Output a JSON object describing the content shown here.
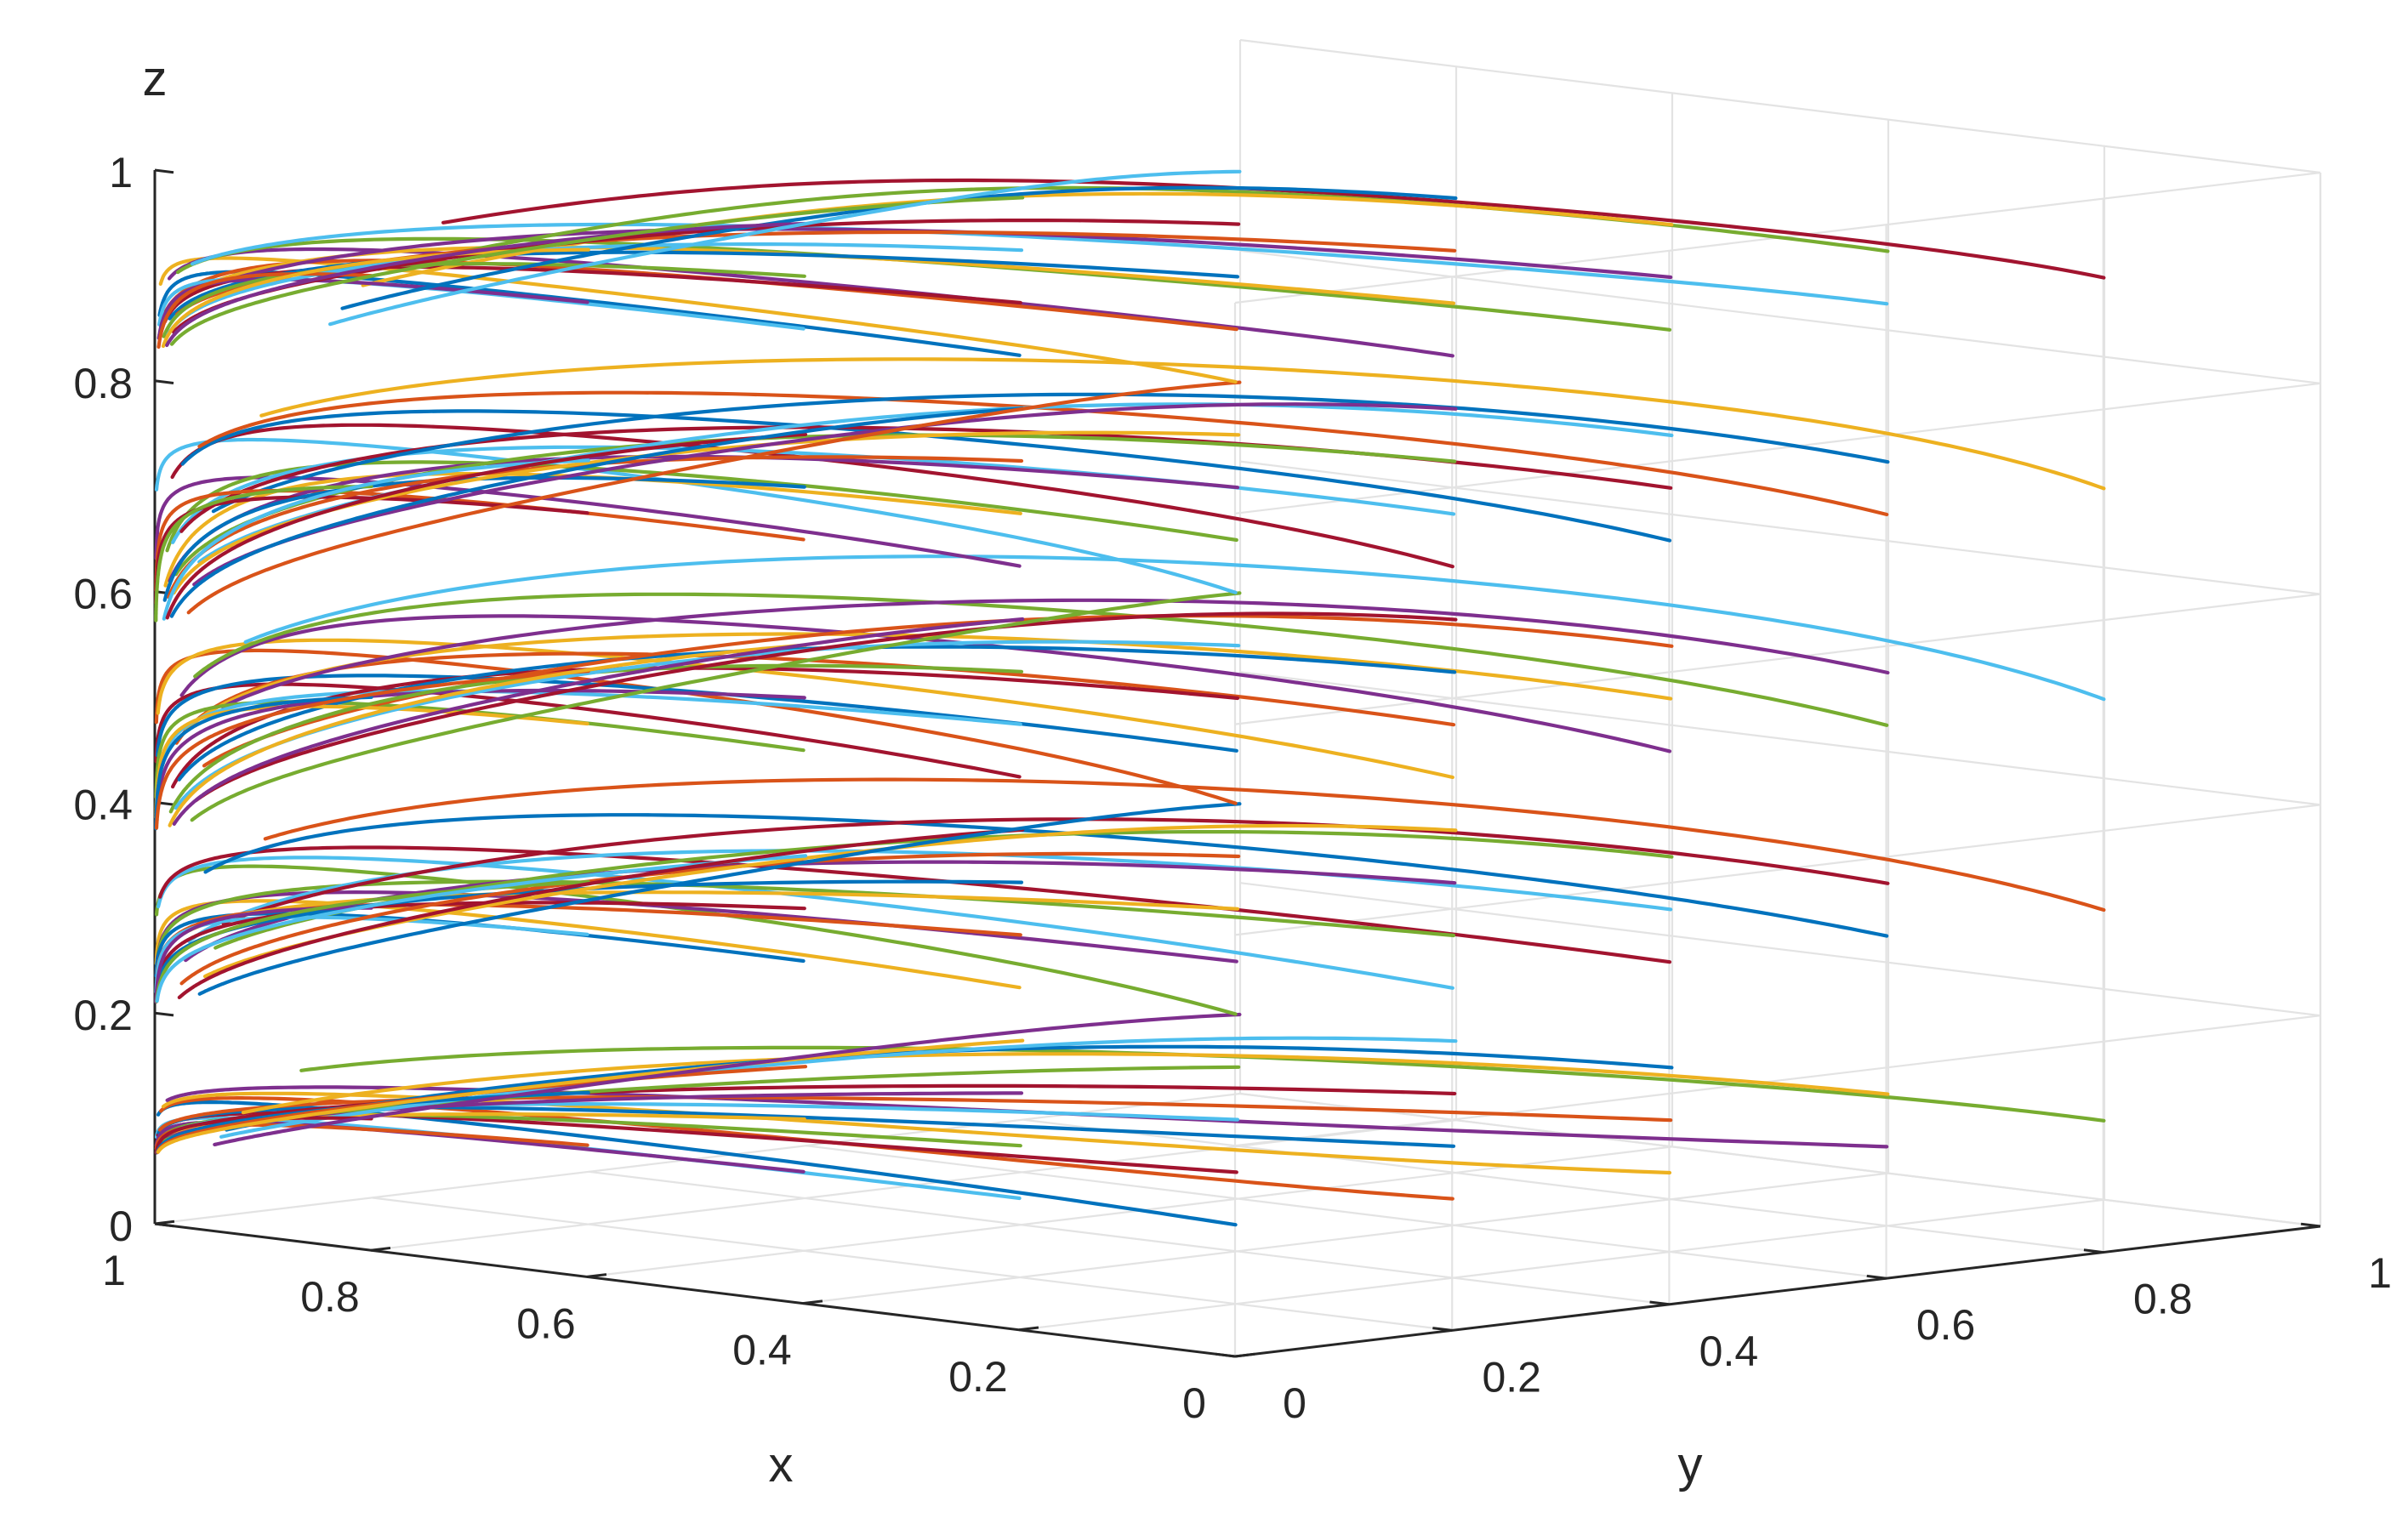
{
  "chart_data": {
    "type": "line",
    "projection": "3d",
    "xlabel": "x",
    "ylabel": "y",
    "zlabel": "z",
    "xlim": [
      0,
      1
    ],
    "ylim": [
      0,
      1
    ],
    "zlim": [
      0,
      1
    ],
    "x_ticks": [
      "0",
      "0.2",
      "0.4",
      "0.6",
      "0.8",
      "1"
    ],
    "y_ticks": [
      "0",
      "0.2",
      "0.4",
      "0.6",
      "0.8",
      "1"
    ],
    "z_ticks": [
      "0",
      "0.2",
      "0.4",
      "0.6",
      "0.8",
      "1"
    ],
    "grid": true,
    "series_colors": [
      "#0072BD",
      "#D95319",
      "#EDB120",
      "#7E2F8E",
      "#77AC30",
      "#4DBEEE",
      "#A2142F"
    ],
    "initial_x_values": [
      0.1,
      0.3,
      0.5,
      0.7,
      0.9
    ],
    "initial_y_values": [
      0.1,
      0.3,
      0.5,
      0.7,
      0.9
    ],
    "initial_z_levels": [
      0.1,
      0.3,
      0.5,
      0.7,
      0.9
    ],
    "convergence_point": {
      "x": 1,
      "y": 0
    },
    "note_trajectories": "125 trajectories; each starts at a combination of the initial x, y and z values and converges toward x = 1, y = 0"
  }
}
